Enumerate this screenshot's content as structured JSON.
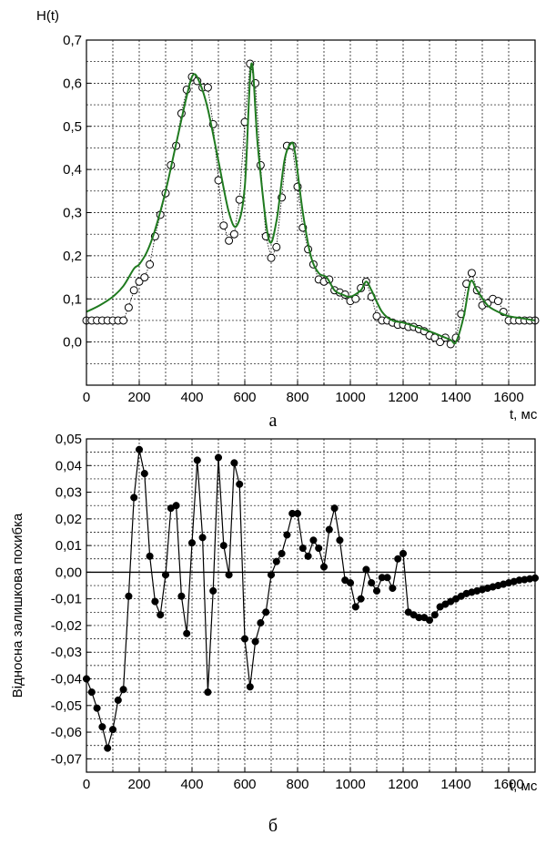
{
  "chart_data": [
    {
      "type": "line",
      "ylabel": "H(t)",
      "xlabel": "t, мс",
      "caption": "а",
      "xlim": [
        0,
        1700
      ],
      "ylim": [
        -0.1,
        0.7
      ],
      "xticks": [
        0,
        200,
        400,
        600,
        800,
        1000,
        1200,
        1400,
        1600
      ],
      "xtick_labels": [
        "0",
        "200",
        "400",
        "600",
        "800",
        "1000",
        "1200",
        "1400",
        "1600"
      ],
      "yticks": [
        0.0,
        0.1,
        0.2,
        0.3,
        0.4,
        0.5,
        0.6,
        0.7
      ],
      "ytick_labels": [
        "0,0",
        "0,1",
        "0,2",
        "0,3",
        "0,4",
        "0,5",
        "0,6",
        "0,7"
      ],
      "grid": true,
      "series": [
        {
          "style": "open-circles-dotted",
          "color": "#000000",
          "x": [
            0,
            20,
            40,
            60,
            80,
            100,
            120,
            140,
            160,
            180,
            200,
            220,
            240,
            260,
            280,
            300,
            320,
            340,
            360,
            380,
            400,
            420,
            440,
            460,
            480,
            500,
            520,
            540,
            560,
            580,
            600,
            620,
            640,
            660,
            680,
            700,
            720,
            740,
            760,
            780,
            800,
            820,
            840,
            860,
            880,
            900,
            920,
            940,
            960,
            980,
            1000,
            1020,
            1040,
            1060,
            1080,
            1100,
            1120,
            1140,
            1160,
            1180,
            1200,
            1220,
            1240,
            1260,
            1280,
            1300,
            1320,
            1340,
            1360,
            1380,
            1400,
            1420,
            1440,
            1460,
            1480,
            1500,
            1520,
            1540,
            1560,
            1580,
            1600,
            1620,
            1640,
            1660,
            1680,
            1700
          ],
          "y": [
            0.05,
            0.05,
            0.05,
            0.05,
            0.05,
            0.05,
            0.05,
            0.05,
            0.08,
            0.12,
            0.14,
            0.15,
            0.18,
            0.245,
            0.295,
            0.345,
            0.41,
            0.455,
            0.53,
            0.585,
            0.615,
            0.605,
            0.59,
            0.59,
            0.505,
            0.375,
            0.27,
            0.235,
            0.25,
            0.33,
            0.51,
            0.645,
            0.6,
            0.41,
            0.245,
            0.195,
            0.22,
            0.335,
            0.455,
            0.455,
            0.36,
            0.265,
            0.215,
            0.18,
            0.145,
            0.14,
            0.145,
            0.12,
            0.115,
            0.11,
            0.095,
            0.1,
            0.125,
            0.14,
            0.105,
            0.06,
            0.05,
            0.05,
            0.045,
            0.04,
            0.04,
            0.035,
            0.035,
            0.03,
            0.025,
            0.015,
            0.01,
            0.0,
            0.01,
            -0.005,
            0.01,
            0.065,
            0.135,
            0.16,
            0.12,
            0.085,
            0.09,
            0.1,
            0.095,
            0.07,
            0.05,
            0.05,
            0.05,
            0.05,
            0.05,
            0.05
          ]
        },
        {
          "style": "smooth-line",
          "color": "#1f7a1f",
          "x": [
            0,
            50,
            100,
            140,
            180,
            200,
            230,
            260,
            300,
            340,
            380,
            405,
            430,
            460,
            500,
            540,
            570,
            600,
            625,
            650,
            690,
            720,
            750,
            775,
            790,
            820,
            850,
            880,
            910,
            940,
            970,
            1000,
            1040,
            1060,
            1080,
            1120,
            1160,
            1200,
            1250,
            1300,
            1340,
            1380,
            1400,
            1430,
            1455,
            1480,
            1520,
            1560,
            1600,
            1650,
            1700
          ],
          "y": [
            0.07,
            0.085,
            0.105,
            0.13,
            0.17,
            0.18,
            0.21,
            0.26,
            0.35,
            0.46,
            0.57,
            0.62,
            0.6,
            0.54,
            0.42,
            0.3,
            0.27,
            0.36,
            0.645,
            0.45,
            0.24,
            0.28,
            0.42,
            0.46,
            0.44,
            0.3,
            0.2,
            0.16,
            0.15,
            0.12,
            0.11,
            0.105,
            0.12,
            0.14,
            0.12,
            0.07,
            0.05,
            0.045,
            0.035,
            0.025,
            0.015,
            0.005,
            0.0,
            0.06,
            0.14,
            0.12,
            0.085,
            0.07,
            0.06,
            0.055,
            0.05
          ]
        }
      ]
    },
    {
      "type": "line",
      "ylabel": "Відносна залишкова похибка",
      "xlabel": "t, мс",
      "caption": "б",
      "xlim": [
        0,
        1700
      ],
      "ylim": [
        -0.075,
        0.05
      ],
      "xticks": [
        0,
        200,
        400,
        600,
        800,
        1000,
        1200,
        1400,
        1600
      ],
      "xtick_labels": [
        "0",
        "200",
        "400",
        "600",
        "800",
        "1000",
        "1200",
        "1400",
        "1600"
      ],
      "yticks": [
        -0.07,
        -0.06,
        -0.05,
        -0.04,
        -0.03,
        -0.02,
        -0.01,
        0.0,
        0.01,
        0.02,
        0.03,
        0.04,
        0.05
      ],
      "ytick_labels": [
        "-0,07",
        "-0,06",
        "-0,05",
        "-0,04",
        "-0,03",
        "-0,02",
        "-0,01",
        "0,00",
        "0,01",
        "0,02",
        "0,03",
        "0,04",
        "0,05"
      ],
      "grid": true,
      "zero_line": true,
      "series": [
        {
          "style": "filled-circles-line",
          "color": "#000000",
          "x": [
            0,
            20,
            40,
            60,
            80,
            100,
            120,
            140,
            160,
            180,
            200,
            220,
            240,
            260,
            280,
            300,
            320,
            340,
            360,
            380,
            400,
            420,
            440,
            460,
            480,
            500,
            520,
            540,
            560,
            580,
            600,
            620,
            640,
            660,
            680,
            700,
            720,
            740,
            760,
            780,
            800,
            820,
            840,
            860,
            880,
            900,
            920,
            940,
            960,
            980,
            1000,
            1020,
            1040,
            1060,
            1080,
            1100,
            1120,
            1140,
            1160,
            1180,
            1200,
            1220,
            1240,
            1260,
            1280,
            1300,
            1320,
            1340,
            1360,
            1380,
            1400,
            1420,
            1440,
            1460,
            1480,
            1500,
            1520,
            1540,
            1560,
            1580,
            1600,
            1620,
            1640,
            1660,
            1680,
            1700
          ],
          "y": [
            -0.04,
            -0.045,
            -0.051,
            -0.058,
            -0.066,
            -0.059,
            -0.048,
            -0.044,
            -0.009,
            0.028,
            0.046,
            0.037,
            0.006,
            -0.011,
            -0.016,
            -0.001,
            0.024,
            0.025,
            -0.009,
            -0.023,
            0.011,
            0.042,
            0.013,
            -0.045,
            -0.007,
            0.043,
            0.01,
            -0.001,
            0.041,
            0.033,
            -0.025,
            -0.043,
            -0.026,
            -0.019,
            -0.015,
            -0.001,
            0.004,
            0.007,
            0.014,
            0.022,
            0.022,
            0.009,
            0.006,
            0.012,
            0.009,
            0.002,
            0.016,
            0.024,
            0.012,
            -0.003,
            -0.004,
            -0.013,
            -0.01,
            0.001,
            -0.004,
            -0.007,
            -0.002,
            -0.002,
            -0.006,
            0.005,
            0.007,
            -0.015,
            -0.016,
            -0.017,
            -0.017,
            -0.018,
            -0.016,
            -0.013,
            -0.012,
            -0.011,
            -0.01,
            -0.009,
            -0.008,
            -0.0075,
            -0.007,
            -0.0065,
            -0.006,
            -0.0055,
            -0.005,
            -0.0045,
            -0.004,
            -0.0035,
            -0.003,
            -0.0028,
            -0.0025,
            -0.0022
          ]
        }
      ]
    }
  ]
}
